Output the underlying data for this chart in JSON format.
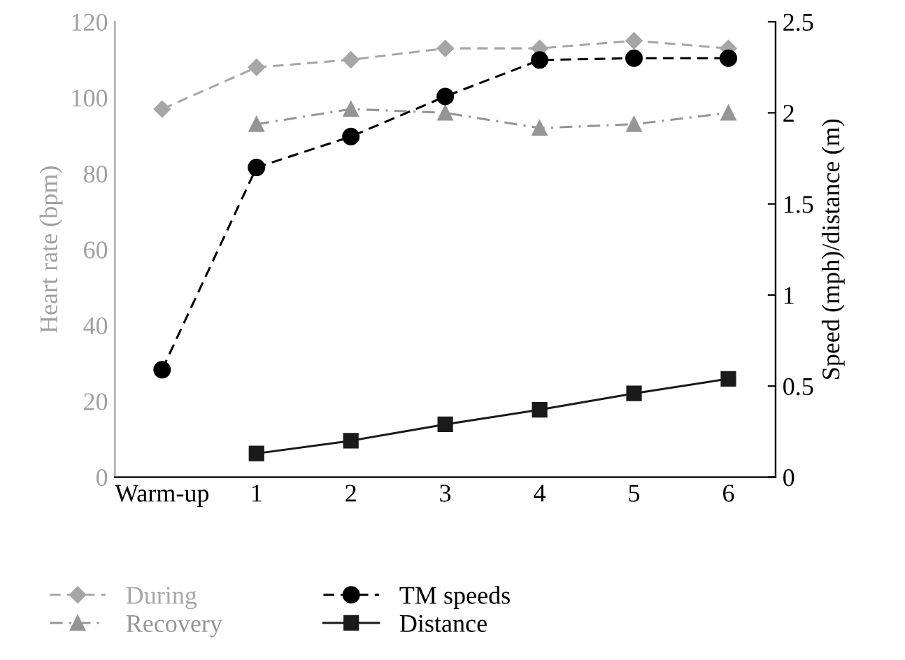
{
  "chart_data": {
    "type": "line",
    "ylabel": "Heart rate (bpm)",
    "y2label": "Speed (mph)/distance (m)",
    "categories": [
      "Warm-up",
      "1",
      "2",
      "3",
      "4",
      "5",
      "6"
    ],
    "ylim": [
      0,
      120
    ],
    "yticks": [
      0,
      20,
      40,
      60,
      80,
      100,
      120
    ],
    "y2lim": [
      0,
      2.5
    ],
    "y2ticks": [
      0,
      0.5,
      1,
      1.5,
      2,
      2.5
    ],
    "grid": false,
    "legend": "bottom",
    "series": [
      {
        "name": "During",
        "color": "#a6a6a6",
        "marker": "diamond",
        "line_style": "dashed",
        "values": [
          97,
          108,
          110,
          113,
          113,
          115,
          113
        ]
      },
      {
        "name": "Recovery",
        "color": "#959595",
        "marker": "triangle",
        "line_style": "dashdot",
        "values": [
          null,
          93,
          97,
          96,
          92,
          93,
          96
        ]
      },
      {
        "name": "TM speeds",
        "color": "#000000",
        "marker": "circle",
        "line_style": "dashed",
        "axis": "y2",
        "values": [
          0.59,
          1.7,
          1.87,
          2.09,
          2.29,
          2.3,
          2.3
        ]
      },
      {
        "name": "Distance",
        "color": "#1a1a1a",
        "marker": "square",
        "line_style": "solid",
        "axis": "y2",
        "values": [
          null,
          0.13,
          0.2,
          0.29,
          0.37,
          0.46,
          0.54
        ]
      }
    ]
  }
}
